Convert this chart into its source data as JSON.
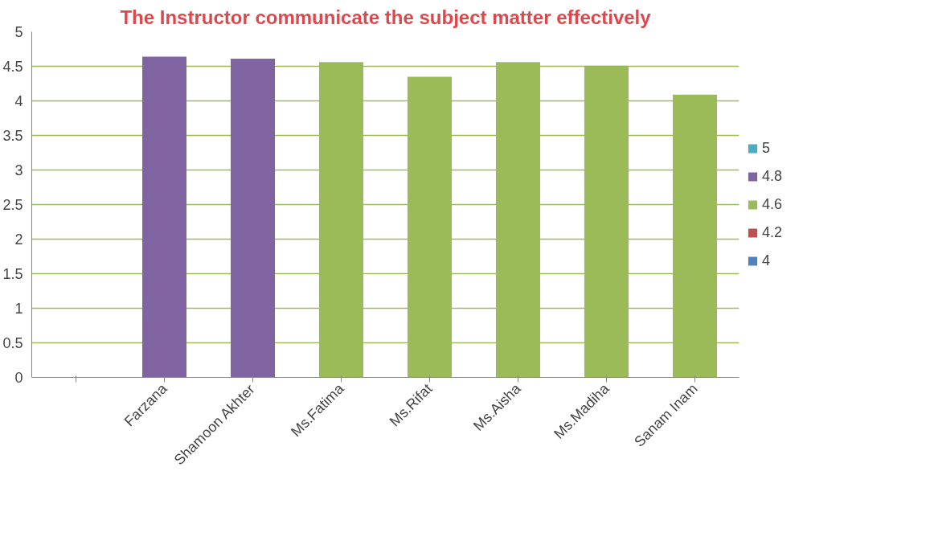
{
  "chart_data": {
    "type": "bar",
    "title": "The Instructor communicate the subject matter effectively",
    "categories": [
      null,
      "Farzana",
      "Shamoon Akhter",
      "Ms.Fatima",
      "Ms.Rifat",
      "Ms.Aisha",
      "Ms.Madiha",
      "Sanam Inam"
    ],
    "series": [
      {
        "name": "5",
        "color": "#4bacc6",
        "values": [
          null,
          null,
          null,
          null,
          null,
          null,
          null,
          null
        ]
      },
      {
        "name": "4.8",
        "color": "#8064a2",
        "values": [
          null,
          4.64,
          4.61,
          null,
          null,
          null,
          null,
          null
        ]
      },
      {
        "name": "4.6",
        "color": "#9bbb59",
        "values": [
          null,
          null,
          null,
          4.56,
          4.35,
          4.56,
          4.51,
          4.09
        ]
      },
      {
        "name": "4.2",
        "color": "#c0504d",
        "values": [
          null,
          null,
          null,
          null,
          null,
          null,
          null,
          null
        ]
      },
      {
        "name": "4",
        "color": "#4f81bd",
        "values": [
          null,
          null,
          null,
          null,
          null,
          null,
          null,
          null
        ]
      }
    ],
    "ylim": [
      0,
      5
    ],
    "yticks": [
      0,
      0.5,
      1,
      1.5,
      2,
      2.5,
      3,
      3.5,
      4,
      4.5,
      5
    ],
    "grid": "y",
    "legend": "right"
  }
}
